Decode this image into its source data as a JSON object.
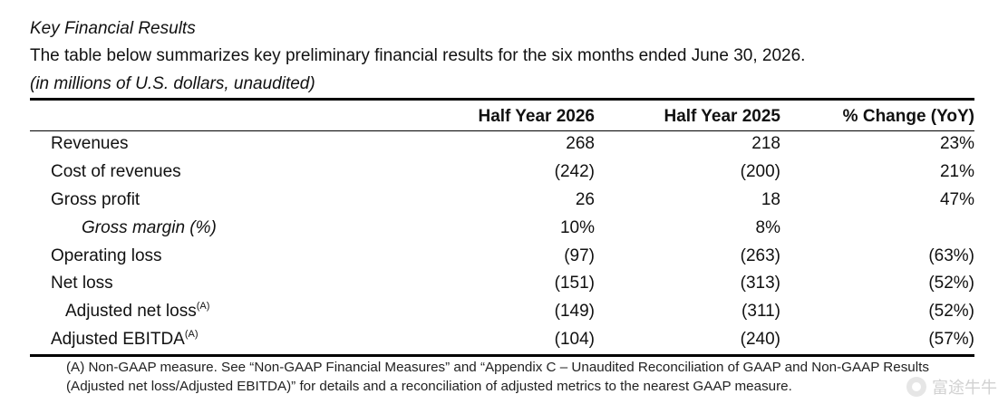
{
  "title": "Key Financial Results",
  "description": "The table below summarizes key preliminary financial results for the six months ended June 30, 2026.",
  "units": "(in millions of U.S. dollars, unaudited)",
  "table": {
    "columns": [
      "",
      "Half Year 2026",
      "Half Year 2025",
      "% Change (YoY)"
    ],
    "rows": [
      {
        "label": "Revenues",
        "note": "",
        "h2026": "268",
        "h2025": "218",
        "change": "23%"
      },
      {
        "label": "Cost of revenues",
        "note": "",
        "h2026": "(242)",
        "h2025": "(200)",
        "change": "21%"
      },
      {
        "label": "Gross profit",
        "note": "",
        "h2026": "26",
        "h2025": "18",
        "change": "47%"
      },
      {
        "label": "Gross margin (%)",
        "note": "",
        "h2026": "10%",
        "h2025": "8%",
        "change": ""
      },
      {
        "label": "Operating loss",
        "note": "",
        "h2026": "(97)",
        "h2025": "(263)",
        "change": "(63%)"
      },
      {
        "label": "Net loss",
        "note": "",
        "h2026": "(151)",
        "h2025": "(313)",
        "change": "(52%)"
      },
      {
        "label": "Adjusted net loss",
        "note": "(A)",
        "h2026": "(149)",
        "h2025": "(311)",
        "change": "(52%)"
      },
      {
        "label": "Adjusted EBITDA",
        "note": "(A)",
        "h2026": "(104)",
        "h2025": "(240)",
        "change": "(57%)"
      }
    ]
  },
  "footnote": "(A) Non-GAAP measure. See “Non-GAAP Financial Measures” and “Appendix C – Unaudited Reconciliation of GAAP and Non-GAAP Results (Adjusted net loss/Adjusted EBITDA)” for details and a reconciliation of adjusted metrics to the nearest GAAP measure.",
  "watermark": {
    "icon": "watermark-logo-icon",
    "text": "富途牛牛"
  }
}
